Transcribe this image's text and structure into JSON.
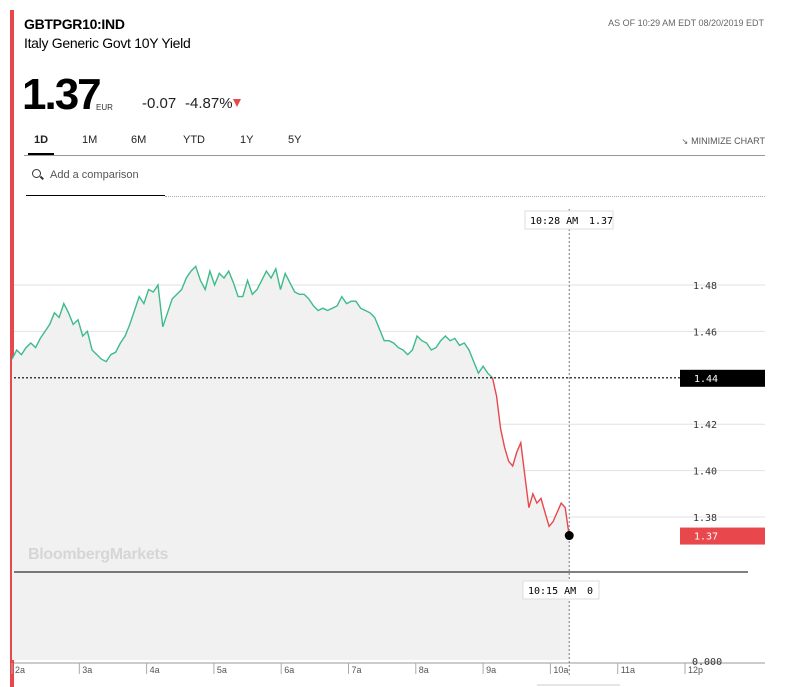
{
  "header": {
    "ticker": "GBTPGR10:IND",
    "name": "Italy Generic Govt 10Y Yield",
    "as_of": "AS OF 10:29 AM EDT 08/20/2019 EDT",
    "price": "1.37",
    "currency": "EUR",
    "change": "-0.07",
    "change_pct": "-4.87%"
  },
  "tabs": [
    {
      "label": "1D",
      "active": true
    },
    {
      "label": "1M",
      "active": false
    },
    {
      "label": "6M",
      "active": false
    },
    {
      "label": "YTD",
      "active": false
    },
    {
      "label": "1Y",
      "active": false
    },
    {
      "label": "5Y",
      "active": false
    }
  ],
  "minimize_label": "MINIMIZE CHART",
  "comparison_placeholder": "Add a comparison",
  "watermark": "BloombergMarkets",
  "colors": {
    "up": "#3dbb8a",
    "down": "#e8474c",
    "accent_bar": "#e8474c",
    "area_fill": "#f1f1f1",
    "prev_close_label_bg": "#000000",
    "last_label_bg": "#e8474c"
  },
  "chart_data": {
    "type": "line",
    "x_tick_labels": [
      "2a",
      "3a",
      "4a",
      "5a",
      "6a",
      "7a",
      "8a",
      "9a",
      "10a",
      "11a",
      "12p"
    ],
    "y_tick_labels": [
      "1.48",
      "1.46",
      "1.42",
      "1.40",
      "1.38"
    ],
    "ylim": [
      1.355,
      1.505
    ],
    "previous_close": 1.44,
    "previous_close_label": "1.44",
    "last_price_label": "1.37",
    "crosshair_time_label": "10:28 AM",
    "crosshair_value_label": "1.37",
    "volume_time_label": "10:15 AM",
    "volume_value_label": "0",
    "volume_axis_label": "0.000",
    "series": [
      {
        "x": [
          2.0,
          2.07,
          2.14,
          2.21,
          2.28,
          2.35,
          2.42,
          2.49,
          2.56,
          2.63,
          2.7,
          2.77,
          2.84,
          2.91,
          2.98,
          3.05,
          3.12,
          3.19,
          3.26,
          3.33,
          3.4,
          3.47,
          3.54,
          3.61,
          3.68,
          3.75,
          3.82,
          3.89,
          3.96,
          4.03,
          4.1,
          4.17,
          4.24,
          4.31,
          4.38,
          4.45,
          4.52,
          4.59,
          4.66,
          4.73,
          4.8,
          4.87,
          4.94,
          5.01,
          5.08,
          5.15,
          5.22,
          5.29,
          5.36,
          5.43,
          5.5,
          5.57,
          5.64,
          5.71,
          5.78,
          5.85,
          5.92,
          5.99,
          6.06,
          6.13,
          6.2,
          6.27,
          6.34,
          6.41,
          6.48,
          6.55,
          6.62,
          6.69,
          6.76,
          6.83,
          6.9,
          6.97,
          7.04,
          7.11,
          7.18,
          7.25,
          7.32,
          7.39,
          7.46,
          7.53,
          7.6,
          7.67,
          7.74,
          7.81,
          7.88,
          7.95,
          8.02,
          8.09,
          8.16,
          8.23,
          8.3,
          8.37,
          8.44,
          8.51,
          8.58,
          8.65,
          8.72,
          8.79,
          8.86,
          8.93,
          9.0,
          9.07,
          9.14
        ],
        "y": [
          1.448,
          1.452,
          1.45,
          1.453,
          1.455,
          1.453,
          1.457,
          1.46,
          1.463,
          1.468,
          1.466,
          1.472,
          1.468,
          1.463,
          1.465,
          1.458,
          1.46,
          1.452,
          1.45,
          1.448,
          1.447,
          1.45,
          1.451,
          1.455,
          1.458,
          1.463,
          1.469,
          1.475,
          1.472,
          1.478,
          1.477,
          1.48,
          1.462,
          1.468,
          1.474,
          1.476,
          1.478,
          1.483,
          1.486,
          1.488,
          1.482,
          1.478,
          1.486,
          1.48,
          1.485,
          1.483,
          1.486,
          1.481,
          1.475,
          1.475,
          1.482,
          1.476,
          1.478,
          1.482,
          1.486,
          1.483,
          1.487,
          1.478,
          1.485,
          1.481,
          1.477,
          1.476,
          1.476,
          1.474,
          1.471,
          1.469,
          1.47,
          1.469,
          1.47,
          1.471,
          1.475,
          1.472,
          1.473,
          1.473,
          1.47,
          1.469,
          1.468,
          1.466,
          1.461,
          1.456,
          1.456,
          1.455,
          1.453,
          1.452,
          1.45,
          1.452,
          1.458,
          1.456,
          1.455,
          1.452,
          1.453,
          1.456,
          1.458,
          1.456,
          1.457,
          1.454,
          1.455,
          1.452,
          1.447,
          1.442,
          1.445,
          1.442,
          1.44
        ]
      },
      {
        "x": [
          9.14,
          9.2,
          9.26,
          9.32,
          9.38,
          9.44,
          9.5,
          9.56,
          9.62,
          9.68,
          9.74,
          9.8,
          9.86,
          9.92,
          9.98,
          10.04,
          10.1,
          10.16,
          10.22,
          10.28
        ],
        "y": [
          1.44,
          1.432,
          1.418,
          1.41,
          1.404,
          1.402,
          1.408,
          1.412,
          1.398,
          1.384,
          1.39,
          1.386,
          1.388,
          1.382,
          1.376,
          1.378,
          1.382,
          1.386,
          1.384,
          1.372
        ]
      }
    ]
  }
}
